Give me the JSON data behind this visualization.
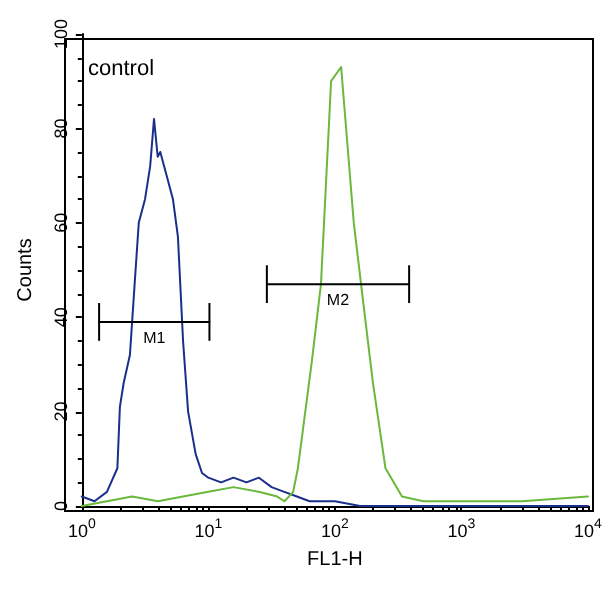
{
  "chart_data": {
    "type": "line",
    "xlabel": "FL1-H",
    "ylabel": "Counts",
    "log": "x",
    "grid": false,
    "marker": "none",
    "line_style": "solid",
    "xlim": [
      1,
      10000
    ],
    "ylim": [
      0,
      100
    ],
    "xticks": [
      {
        "value": 1,
        "label": "10$^{0}$"
      },
      {
        "value": 10,
        "label": "10$^{1}$"
      },
      {
        "value": 100,
        "label": "10$^{2}$"
      },
      {
        "value": 1000,
        "label": "10$^{3}$"
      },
      {
        "value": 10000,
        "label": "10$^{4}$"
      }
    ],
    "yticks": [
      0,
      20,
      40,
      60,
      80,
      100
    ],
    "annotations": [
      "control"
    ],
    "series": [
      {
        "color": "#1a2f8c",
        "x": [
          1,
          1.26,
          1.58,
          1.91,
          2.0,
          2.14,
          2.4,
          2.63,
          2.82,
          3.16,
          3.47,
          3.72,
          3.98,
          4.17,
          4.68,
          5.25,
          5.75,
          6.31,
          6.92,
          7.94,
          8.91,
          10,
          12.6,
          15.8,
          20,
          25.1,
          31.6,
          39.8,
          50.1,
          63.1,
          100,
          158,
          1000,
          10000
        ],
        "values": [
          2,
          1,
          3,
          8,
          21,
          26,
          32,
          48,
          60,
          65,
          72,
          82,
          74,
          75,
          70,
          65,
          57,
          35,
          20,
          11,
          7,
          6,
          5,
          6,
          5,
          6,
          4,
          3,
          2,
          1,
          1,
          0,
          0,
          0
        ]
      },
      {
        "color": "#6ab83c",
        "x": [
          1,
          1.58,
          2.5,
          4,
          6.3,
          10,
          15.8,
          25,
          35,
          40,
          46.8,
          51,
          66,
          77.6,
          93.3,
          112,
          141,
          166,
          200,
          251,
          339,
          500,
          1000,
          3000,
          10000
        ],
        "values": [
          0,
          1,
          2,
          1,
          2,
          3,
          4,
          3,
          2,
          1,
          3,
          8,
          31,
          47,
          90,
          93,
          60,
          44,
          26,
          8,
          2,
          1,
          1,
          1,
          2
        ]
      },
      {
        "name": "M1",
        "color": "#000000",
        "x": [
          1.37,
          10.2
        ],
        "values": [
          39,
          39
        ],
        "errors": [
          4,
          4
        ]
      },
      {
        "name": "M2",
        "color": "#000000",
        "x": [
          29,
          386
        ],
        "values": [
          47,
          47
        ],
        "errors": [
          4,
          4
        ]
      }
    ]
  }
}
